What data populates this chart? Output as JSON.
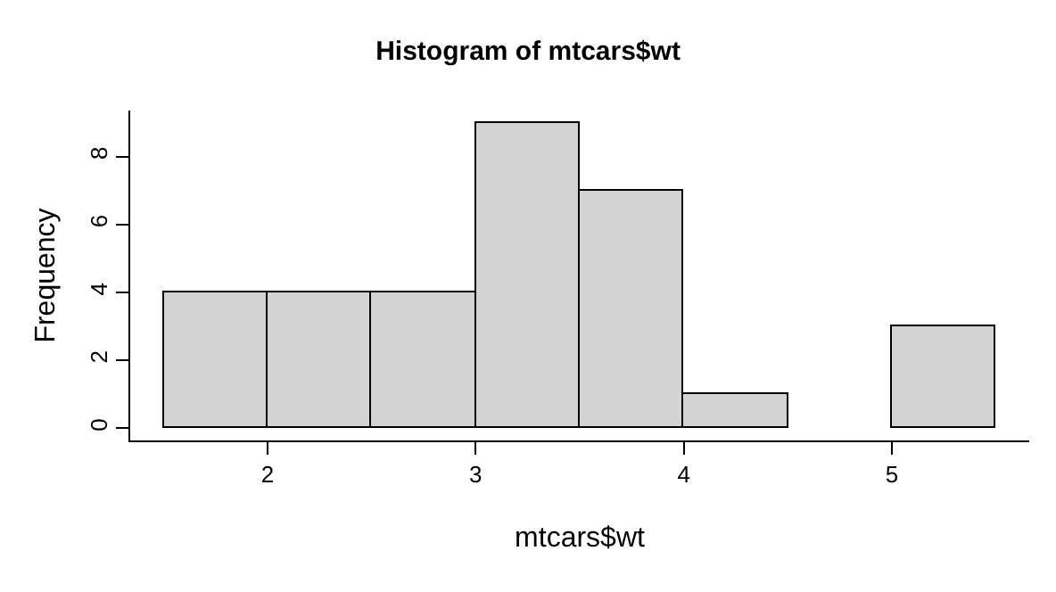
{
  "chart_data": {
    "type": "histogram",
    "title": "Histogram of mtcars$wt",
    "xlabel": "mtcars$wt",
    "ylabel": "Frequency",
    "bins": [
      1.5,
      2.0,
      2.5,
      3.0,
      3.5,
      4.0,
      4.5,
      5.0,
      5.5
    ],
    "values": [
      4,
      4,
      4,
      9,
      7,
      1,
      0,
      3
    ],
    "color": "#d3d3d3",
    "xlim": [
      1.34,
      5.66
    ],
    "ylim": [
      -0.36,
      9.36
    ],
    "xticks": [
      2,
      3,
      4,
      5
    ],
    "yticks": [
      0,
      2,
      4,
      6,
      8
    ]
  }
}
